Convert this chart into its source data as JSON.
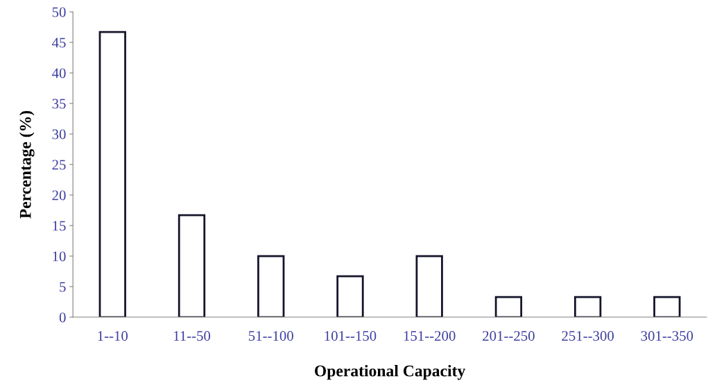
{
  "chart_data": {
    "type": "bar",
    "categories": [
      "1--10",
      "11--50",
      "51--100",
      "101--150",
      "151--200",
      "201--250",
      "251--300",
      "301--350"
    ],
    "values": [
      46.7,
      16.7,
      10,
      6.7,
      10,
      3.3,
      3.3,
      3.3
    ],
    "color": "#ffffff",
    "xlabel": "Operational Capacity",
    "ylabel": "Percentage (%)",
    "ylim": [
      0,
      50
    ],
    "yticks": [
      0,
      5,
      10,
      15,
      20,
      25,
      30,
      35,
      40,
      45,
      50
    ],
    "grid": false,
    "legend": false
  }
}
